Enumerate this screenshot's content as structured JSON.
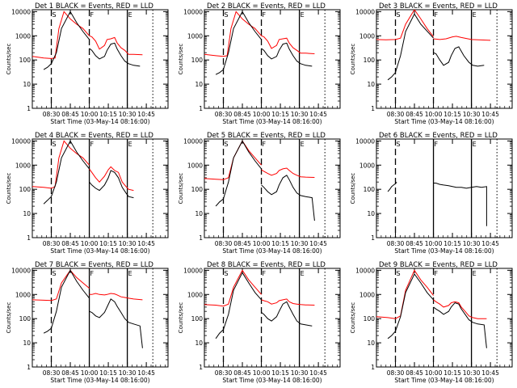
{
  "chart_data": {
    "type": "line",
    "x_scale": "time",
    "y_scale": "log",
    "ylim": [
      1,
      12000
    ],
    "y_ticks": [
      1,
      10,
      100,
      1000,
      10000
    ],
    "y_tick_labels": [
      "1",
      "10",
      "100",
      "1000",
      "10000"
    ],
    "xlim": [
      "08:20",
      "10:55"
    ],
    "x_ticks": [
      "08:30",
      "08:45",
      "10:00",
      "10:15",
      "10:30",
      "10:45"
    ],
    "ylabel": "Counts/sec",
    "xlabel": "Start Time (03-May-14 08:16:00)",
    "legend_text": "BLACK = Events, RED = LLD",
    "series_colors": {
      "events": "#000000",
      "lld": "#ff0000"
    },
    "panels": [
      {
        "title": "Det 1",
        "marks": [
          "S",
          "F",
          "E"
        ],
        "events_start": "08:26",
        "dashed": [
          "08:30",
          "10:00"
        ],
        "solid": [
          "10:30"
        ],
        "dotted": [
          "10:48"
        ],
        "events": {
          "x": [
            "08:26",
            "08:28",
            "08:30",
            "08:34",
            "08:38",
            "08:45",
            "08:50",
            "08:55",
            "09:00",
            "10:00",
            "10:02",
            "10:05",
            "10:08",
            "10:12",
            "10:14",
            "10:17",
            "10:20",
            "10:22",
            "10:25",
            "10:28",
            "10:31",
            "10:35",
            "10:40"
          ],
          "y": [
            40,
            50,
            70,
            200,
            2000,
            10000,
            3500,
            1500,
            700,
            300,
            250,
            150,
            110,
            140,
            250,
            450,
            500,
            280,
            150,
            90,
            70,
            60,
            55
          ]
        },
        "lld": {
          "x": [
            "08:20",
            "08:26",
            "08:30",
            "08:33",
            "08:36",
            "08:40",
            "08:45",
            "08:50",
            "08:55",
            "09:00",
            "10:00",
            "10:02",
            "10:05",
            "10:08",
            "10:12",
            "10:14",
            "10:17",
            "10:20",
            "10:22",
            "10:25",
            "10:28",
            "10:31",
            "10:35",
            "10:42"
          ],
          "y": [
            140,
            120,
            115,
            120,
            2000,
            10000,
            5000,
            3000,
            2000,
            1000,
            1000,
            900,
            600,
            280,
            400,
            700,
            750,
            850,
            500,
            320,
            250,
            170,
            170,
            165
          ]
        }
      },
      {
        "title": "Det 2",
        "marks": [
          "S",
          "F",
          "E"
        ],
        "events_start": "08:26",
        "dashed": [
          "08:30",
          "10:00"
        ],
        "solid": [
          "10:30"
        ],
        "dotted": [
          "10:48"
        ],
        "events": {
          "x": [
            "08:26",
            "08:28",
            "08:30",
            "08:34",
            "08:38",
            "08:45",
            "08:50",
            "08:55",
            "09:00",
            "10:00",
            "10:02",
            "10:05",
            "10:08",
            "10:12",
            "10:14",
            "10:17",
            "10:20",
            "10:22",
            "10:25",
            "10:28",
            "10:31",
            "10:35",
            "10:40"
          ],
          "y": [
            25,
            30,
            40,
            200,
            2000,
            10000,
            3500,
            1500,
            700,
            300,
            250,
            150,
            110,
            140,
            250,
            450,
            500,
            280,
            150,
            90,
            70,
            60,
            55
          ]
        },
        "lld": {
          "x": [
            "08:20",
            "08:26",
            "08:30",
            "08:33",
            "08:36",
            "08:40",
            "08:45",
            "08:50",
            "08:55",
            "09:00",
            "10:00",
            "10:02",
            "10:05",
            "10:08",
            "10:12",
            "10:14",
            "10:17",
            "10:20",
            "10:22",
            "10:25",
            "10:28",
            "10:31",
            "10:35",
            "10:42"
          ],
          "y": [
            170,
            150,
            140,
            150,
            2000,
            10000,
            5000,
            3000,
            2000,
            1000,
            1000,
            900,
            600,
            300,
            400,
            700,
            750,
            800,
            500,
            320,
            250,
            190,
            190,
            180
          ]
        }
      },
      {
        "title": "Det 3",
        "marks": [
          "S",
          "F",
          "E"
        ],
        "events_start": "08:26",
        "dashed": [
          "08:30",
          "10:00"
        ],
        "solid": [
          "10:30"
        ],
        "dotted": [
          "10:48"
        ],
        "events": {
          "x": [
            "08:26",
            "08:28",
            "08:30",
            "08:34",
            "08:38",
            "08:45",
            "08:50",
            "09:00",
            "10:00",
            "10:02",
            "10:05",
            "10:08",
            "10:12",
            "10:14",
            "10:17",
            "10:20",
            "10:24",
            "10:28",
            "10:31",
            "10:35",
            "10:40"
          ],
          "y": [
            15,
            20,
            30,
            150,
            1500,
            8000,
            3000,
            800,
            200,
            180,
            100,
            60,
            80,
            150,
            300,
            350,
            150,
            80,
            60,
            55,
            60
          ]
        },
        "lld": {
          "x": [
            "08:20",
            "08:25",
            "08:30",
            "08:34",
            "08:38",
            "08:45",
            "08:50",
            "08:55",
            "09:00",
            "10:00",
            "10:05",
            "10:10",
            "10:15",
            "10:18",
            "10:22",
            "10:30",
            "10:45"
          ],
          "y": [
            700,
            680,
            700,
            800,
            3000,
            12000,
            5000,
            2000,
            900,
            750,
            700,
            750,
            900,
            950,
            850,
            700,
            650
          ]
        }
      },
      {
        "title": "Det 4",
        "marks": [
          "S",
          "F",
          "E"
        ],
        "events_start": "08:26",
        "dashed": [
          "08:30"
        ],
        "solid": [
          "10:00",
          "10:30"
        ],
        "dotted": [
          "10:48"
        ],
        "events": {
          "x": [
            "08:26",
            "08:28",
            "08:30",
            "08:34",
            "08:38",
            "08:45",
            "08:50",
            "08:55",
            "09:00",
            "10:00",
            "10:02",
            "10:05",
            "10:08",
            "10:12",
            "10:15",
            "10:17",
            "10:20",
            "10:23",
            "10:26",
            "10:29",
            "10:31",
            "10:35"
          ],
          "y": [
            25,
            35,
            50,
            200,
            2000,
            10000,
            3500,
            1500,
            700,
            200,
            150,
            110,
            90,
            150,
            300,
            600,
            500,
            300,
            120,
            70,
            50,
            45
          ]
        },
        "lld": {
          "x": [
            "08:20",
            "08:26",
            "08:30",
            "08:33",
            "08:36",
            "08:40",
            "08:45",
            "08:50",
            "08:55",
            "09:00",
            "10:00",
            "10:02",
            "10:05",
            "10:08",
            "10:12",
            "10:15",
            "10:17",
            "10:20",
            "10:23",
            "10:26",
            "10:29",
            "10:31",
            "10:35"
          ],
          "y": [
            130,
            120,
            110,
            130,
            2000,
            10000,
            5000,
            3000,
            2000,
            1000,
            700,
            500,
            300,
            200,
            350,
            650,
            850,
            600,
            500,
            200,
            130,
            100,
            90
          ]
        }
      },
      {
        "title": "Det 5",
        "marks": [
          "S",
          "F",
          "E"
        ],
        "events_start": "08:26",
        "dashed": [
          "08:30",
          "10:00"
        ],
        "solid": [
          "10:30"
        ],
        "dotted": [
          "10:48"
        ],
        "events": {
          "x": [
            "08:26",
            "08:28",
            "08:30",
            "08:34",
            "08:38",
            "08:45",
            "08:50",
            "08:55",
            "09:00",
            "10:00",
            "10:02",
            "10:05",
            "10:08",
            "10:12",
            "10:14",
            "10:17",
            "10:20",
            "10:22",
            "10:25",
            "10:28",
            "10:31",
            "10:35",
            "10:40",
            "10:42"
          ],
          "y": [
            20,
            30,
            40,
            200,
            2000,
            10000,
            3500,
            1500,
            700,
            150,
            120,
            80,
            60,
            80,
            150,
            300,
            380,
            250,
            120,
            70,
            55,
            50,
            45,
            5
          ]
        },
        "lld": {
          "x": [
            "08:20",
            "08:26",
            "08:30",
            "08:34",
            "08:38",
            "08:45",
            "08:50",
            "08:55",
            "09:00",
            "10:00",
            "10:02",
            "10:05",
            "10:08",
            "10:12",
            "10:14",
            "10:17",
            "10:20",
            "10:22",
            "10:25",
            "10:28",
            "10:31",
            "10:35",
            "10:42"
          ],
          "y": [
            280,
            260,
            250,
            300,
            2000,
            10000,
            4000,
            2000,
            1000,
            650,
            550,
            450,
            380,
            450,
            600,
            700,
            750,
            600,
            450,
            380,
            330,
            320,
            310
          ]
        }
      },
      {
        "title": "Det 6",
        "marks": [
          "S",
          "F",
          "E"
        ],
        "events_start": "08:26",
        "dashed": [
          "08:30"
        ],
        "solid": [
          "10:00",
          "10:30"
        ],
        "dotted": [
          "10:48"
        ],
        "events": {
          "x": [
            "08:26",
            "08:27",
            "08:28",
            "08:29",
            "08:30",
            "08:31",
            "10:00",
            "10:02",
            "10:05",
            "10:08",
            "10:12",
            "10:15",
            "10:18",
            "10:22",
            "10:26",
            "10:30",
            "10:34",
            "10:38",
            "10:42",
            "10:42"
          ],
          "y": [
            80,
            100,
            130,
            150,
            170,
            200,
            180,
            180,
            160,
            150,
            140,
            130,
            120,
            120,
            110,
            120,
            130,
            120,
            130,
            3
          ]
        },
        "lld": {
          "x": [],
          "y": []
        }
      },
      {
        "title": "Det 7",
        "marks": [
          "S",
          "F",
          "E"
        ],
        "events_start": "08:26",
        "dashed": [
          "08:30"
        ],
        "solid": [
          "10:00",
          "10:30"
        ],
        "dotted": [
          "10:48"
        ],
        "events": {
          "x": [
            "08:26",
            "08:28",
            "08:30",
            "08:34",
            "08:38",
            "08:45",
            "08:50",
            "08:55",
            "09:00",
            "10:00",
            "10:02",
            "10:05",
            "10:08",
            "10:12",
            "10:14",
            "10:17",
            "10:20",
            "10:22",
            "10:25",
            "10:28",
            "10:31",
            "10:35",
            "10:40",
            "10:42"
          ],
          "y": [
            25,
            30,
            40,
            200,
            2000,
            10000,
            3500,
            1500,
            700,
            200,
            180,
            130,
            110,
            180,
            300,
            650,
            500,
            320,
            180,
            100,
            70,
            60,
            50,
            6
          ]
        },
        "lld": {
          "x": [
            "08:20",
            "08:26",
            "08:30",
            "08:34",
            "08:38",
            "08:45",
            "08:50",
            "08:55",
            "09:00",
            "10:00",
            "10:02",
            "10:05",
            "10:08",
            "10:12",
            "10:14",
            "10:17",
            "10:20",
            "10:22",
            "10:25",
            "10:28",
            "10:31",
            "10:35",
            "10:42"
          ],
          "y": [
            600,
            580,
            560,
            650,
            3000,
            10000,
            5000,
            3000,
            1800,
            1000,
            1000,
            1100,
            1000,
            950,
            1000,
            1100,
            1050,
            950,
            800,
            750,
            700,
            650,
            600
          ]
        }
      },
      {
        "title": "Det 8",
        "marks": [
          "S",
          "F",
          "E"
        ],
        "events_start": "08:26",
        "dashed": [
          "08:30",
          "10:00"
        ],
        "solid": [
          "10:30"
        ],
        "dotted": [
          "10:48"
        ],
        "events": {
          "x": [
            "08:26",
            "08:28",
            "08:30",
            "08:34",
            "08:38",
            "08:45",
            "08:50",
            "08:55",
            "09:00",
            "10:00",
            "10:02",
            "10:05",
            "10:08",
            "10:12",
            "10:14",
            "10:17",
            "10:20",
            "10:22",
            "10:25",
            "10:28",
            "10:31",
            "10:35",
            "10:40"
          ],
          "y": [
            15,
            25,
            35,
            150,
            1500,
            8000,
            3000,
            1200,
            600,
            180,
            150,
            100,
            80,
            120,
            200,
            400,
            500,
            300,
            150,
            80,
            60,
            55,
            50
          ]
        },
        "lld": {
          "x": [
            "08:20",
            "08:26",
            "08:30",
            "08:34",
            "08:38",
            "08:45",
            "08:50",
            "08:55",
            "09:00",
            "10:00",
            "10:02",
            "10:05",
            "10:08",
            "10:12",
            "10:14",
            "10:17",
            "10:20",
            "10:22",
            "10:25",
            "10:28",
            "10:31",
            "10:35",
            "10:42"
          ],
          "y": [
            380,
            360,
            330,
            400,
            2000,
            10000,
            4000,
            2000,
            1000,
            600,
            550,
            500,
            400,
            450,
            550,
            600,
            650,
            500,
            420,
            400,
            380,
            370,
            360
          ]
        }
      },
      {
        "title": "Det 9",
        "marks": [
          "S",
          "F",
          "E"
        ],
        "events_start": "08:26",
        "dashed": [
          "08:30",
          "10:00"
        ],
        "solid": [
          "10:30"
        ],
        "dotted": [
          "10:48"
        ],
        "events": {
          "x": [
            "08:26",
            "08:28",
            "08:30",
            "08:34",
            "08:38",
            "08:45",
            "08:50",
            "08:55",
            "09:00",
            "10:00",
            "10:02",
            "10:05",
            "10:08",
            "10:12",
            "10:14",
            "10:17",
            "10:20",
            "10:22",
            "10:25",
            "10:28",
            "10:31",
            "10:35",
            "10:40",
            "10:42"
          ],
          "y": [
            15,
            20,
            30,
            120,
            1200,
            7000,
            3000,
            1200,
            600,
            300,
            250,
            200,
            150,
            200,
            300,
            450,
            400,
            250,
            150,
            90,
            70,
            60,
            55,
            6
          ]
        },
        "lld": {
          "x": [
            "08:20",
            "08:26",
            "08:30",
            "08:34",
            "08:38",
            "08:45",
            "08:50",
            "08:55",
            "09:00",
            "10:00",
            "10:02",
            "10:05",
            "10:08",
            "10:12",
            "10:14",
            "10:17",
            "10:20",
            "10:22",
            "10:25",
            "10:28",
            "10:31",
            "10:35",
            "10:42"
          ],
          "y": [
            120,
            110,
            100,
            130,
            1500,
            10000,
            4000,
            2000,
            900,
            600,
            500,
            400,
            300,
            350,
            450,
            500,
            450,
            300,
            200,
            130,
            110,
            100,
            100
          ]
        }
      }
    ]
  }
}
